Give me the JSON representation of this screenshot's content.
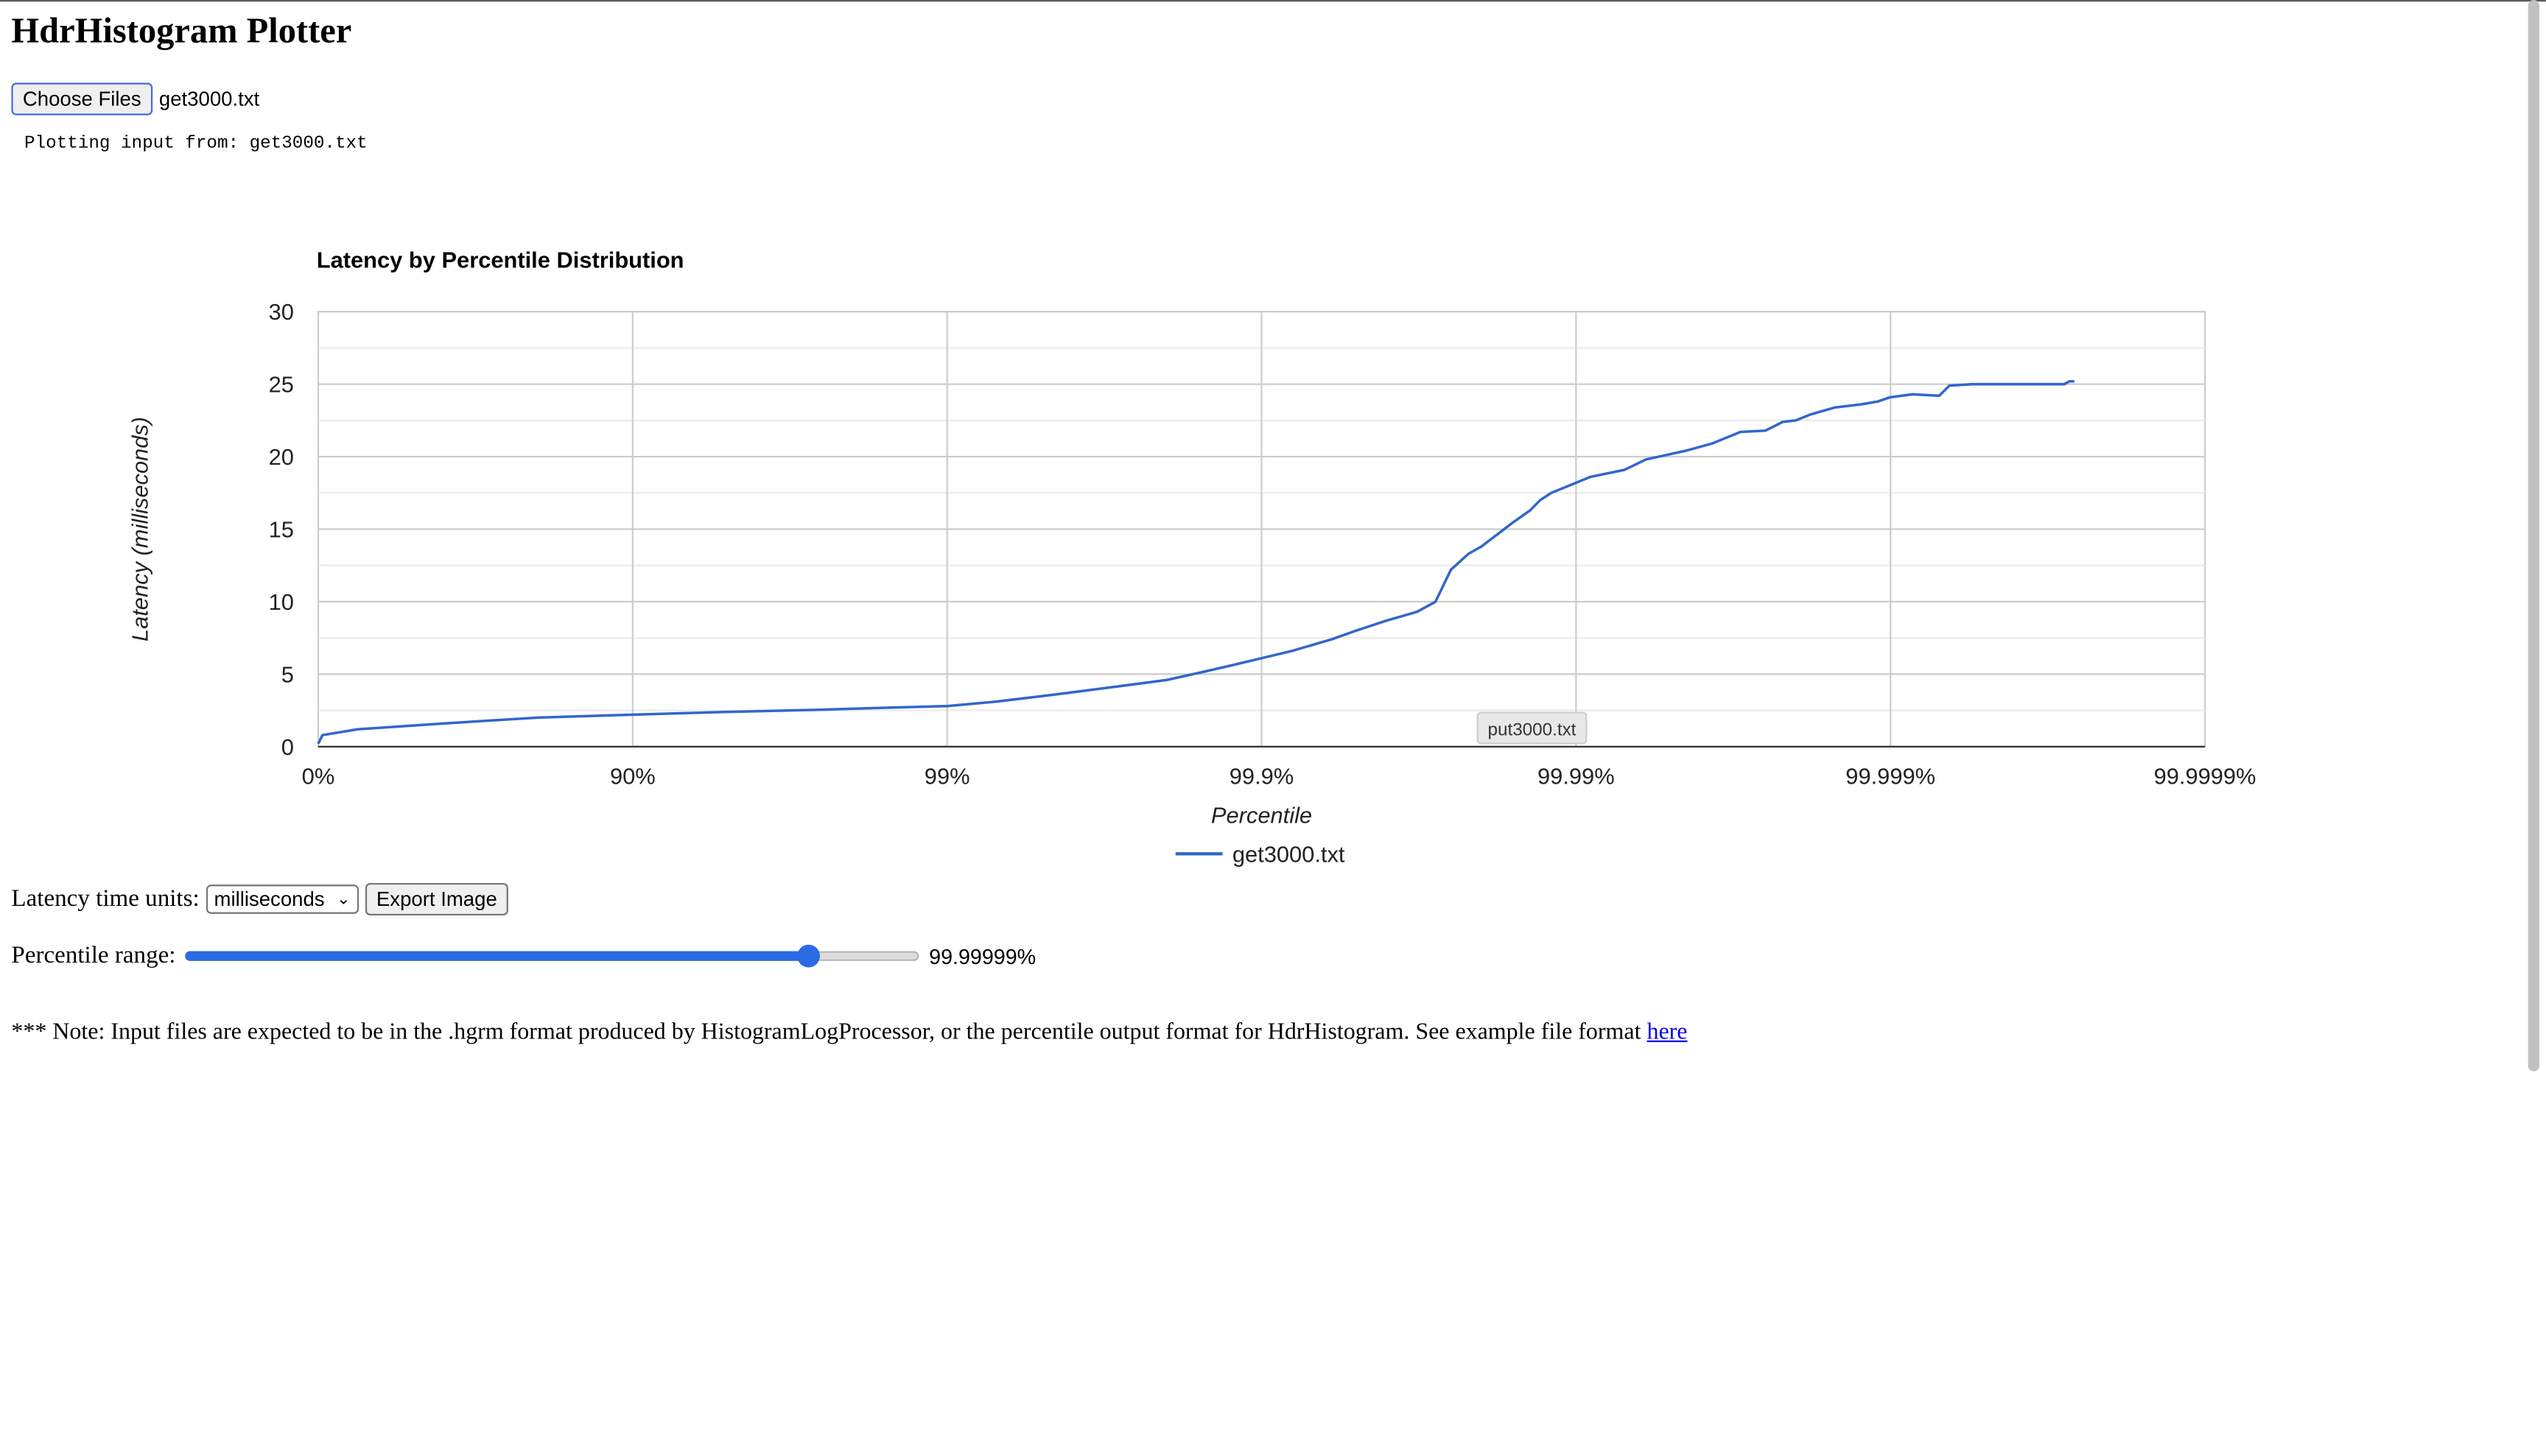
{
  "page": {
    "title": "HdrHistogram Plotter",
    "choose_files_label": "Choose Files",
    "selected_file": "get3000.txt",
    "plotting_text": "Plotting input from: get3000.txt"
  },
  "controls": {
    "units_label": "Latency time units:",
    "units_value": "milliseconds",
    "export_label": "Export Image",
    "range_label": "Percentile range:",
    "range_value_text": "99.99999%",
    "range_position": 0.85
  },
  "note": {
    "text": "*** Note: Input files are expected to be in the .hgrm format produced by HistogramLogProcessor, or the percentile output format for HdrHistogram. See example file format",
    "link_text": "here"
  },
  "tooltip": {
    "text": "put3000.txt"
  },
  "chart_data": {
    "type": "line",
    "title": "Latency by Percentile Distribution",
    "xlabel": "Percentile",
    "ylabel": "Latency (milliseconds)",
    "x_scale": "log-1/(1-p)",
    "x_ticks": [
      "0%",
      "90%",
      "99%",
      "99.9%",
      "99.99%",
      "99.999%",
      "99.9999%"
    ],
    "y_ticks": [
      "0",
      "5",
      "10",
      "15",
      "20",
      "25",
      "30"
    ],
    "ylim": [
      0,
      30
    ],
    "grid": true,
    "legend": "bottom",
    "colors": {
      "line": "#3366cc"
    },
    "series": [
      {
        "name": "get3000.txt",
        "x": [
          "0%",
          "3%",
          "25%",
          "60%",
          "80%",
          "90%",
          "95%",
          "97.5%",
          "98.5%",
          "99%",
          "99.3%",
          "99.55%",
          "99.7%",
          "99.8%",
          "99.85%",
          "99.875%",
          "99.9%",
          "99.92%",
          "99.94%",
          "99.95%",
          "99.96%",
          "99.968%",
          "99.972%",
          "99.975%",
          "99.978%",
          "99.98%",
          "99.984%",
          "99.986%",
          "99.987%",
          "99.988%",
          "99.99%",
          "99.991%",
          "99.993%",
          "99.994%",
          "99.9955%",
          "99.9963%",
          "99.997%",
          "99.9975%",
          "99.9978%",
          "99.998%",
          "99.9982%",
          "99.9985%",
          "99.99875%",
          "99.9989%",
          "99.999%",
          "99.99915%",
          "99.9993%",
          "99.99935%",
          "99.99945%",
          "99.9995%",
          "99.99955%",
          "99.99965%",
          "99.9997%",
          "99.99971%",
          "99.99972%",
          "99.99973%",
          "99.99974%"
        ],
        "y": [
          0.2,
          0.8,
          1.2,
          1.6,
          2.0,
          2.2,
          2.4,
          2.55,
          2.7,
          2.8,
          3.1,
          3.6,
          4.1,
          4.6,
          5.2,
          5.6,
          6.1,
          6.6,
          7.4,
          8.0,
          8.7,
          9.3,
          10.0,
          12.2,
          13.3,
          13.8,
          15.4,
          16.3,
          17.0,
          17.5,
          18.2,
          18.6,
          19.1,
          19.8,
          20.4,
          20.9,
          21.7,
          21.8,
          22.4,
          22.5,
          22.9,
          23.4,
          23.6,
          23.8,
          24.1,
          24.3,
          24.2,
          24.9,
          25.0,
          25.0,
          25.0,
          25.0,
          25.0,
          25.0,
          25.0,
          25.2,
          25.2
        ]
      }
    ]
  }
}
